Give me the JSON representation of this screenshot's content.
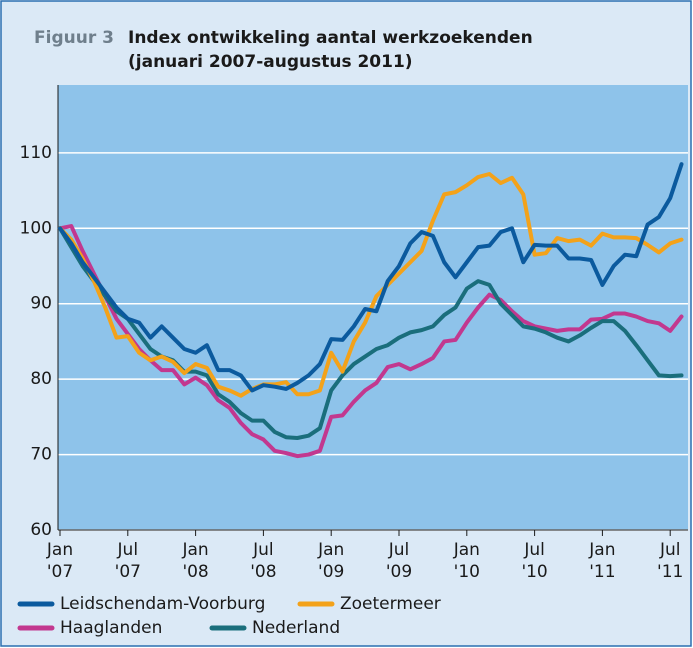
{
  "chart_data": {
    "type": "line",
    "label": "Figuur 3",
    "title": [
      "Index ontwikkeling aantal werkzoekenden",
      "(januari 2007-augustus 2011)"
    ],
    "categories": [
      "Jan '07",
      null,
      null,
      null,
      null,
      null,
      "Jul '07",
      null,
      null,
      null,
      null,
      null,
      "Jan '08",
      null,
      null,
      null,
      null,
      null,
      "Jul '08",
      null,
      null,
      null,
      null,
      null,
      "Jan '09",
      null,
      null,
      null,
      null,
      null,
      "Jul '09",
      null,
      null,
      null,
      null,
      null,
      "Jan '10",
      null,
      null,
      null,
      null,
      null,
      "Jul '10",
      null,
      null,
      null,
      null,
      null,
      "Jan '11",
      null,
      null,
      null,
      null,
      null,
      "Jul '11",
      null
    ],
    "ylim": [
      60,
      119
    ],
    "yticks": [
      60,
      70,
      80,
      90,
      100,
      110
    ],
    "grid": true,
    "series": [
      {
        "name": "Leidschendam-Voorburg",
        "color": "#0b5a9e",
        "values": [
          100,
          98,
          95.5,
          93.5,
          91.5,
          89.5,
          88,
          87.5,
          85.5,
          87,
          85.5,
          84,
          83.5,
          84.5,
          81.2,
          81.2,
          80.5,
          78.5,
          79.2,
          79,
          78.7,
          79.5,
          80.5,
          82,
          85.3,
          85.2,
          87,
          89.3,
          89,
          93,
          95,
          98,
          99.5,
          99,
          95.5,
          93.5,
          95.5,
          97.5,
          97.7,
          99.5,
          100,
          95.5,
          97.8,
          97.7,
          97.7,
          96,
          96,
          95.8,
          92.5,
          95,
          96.5,
          96.3,
          100.5,
          101.5,
          104,
          108.5
        ]
      },
      {
        "name": "Zoetermeer",
        "color": "#f3a21a",
        "values": [
          100,
          98.5,
          96,
          93,
          89.5,
          85.5,
          85.7,
          83.5,
          82.5,
          83,
          82.3,
          80.8,
          82,
          81.5,
          79,
          78.5,
          77.8,
          78.7,
          79.3,
          79.3,
          79.6,
          78,
          78,
          78.5,
          83.5,
          81,
          85,
          87.5,
          91,
          92.5,
          94,
          95.5,
          97,
          101,
          104.5,
          104.8,
          105.7,
          106.8,
          107.2,
          106,
          106.7,
          104.5,
          96.5,
          96.7,
          98.7,
          98.3,
          98.5,
          97.7,
          99.3,
          98.8,
          98.8,
          98.7,
          97.8,
          96.8,
          98,
          98.5
        ]
      },
      {
        "name": "Haaglanden",
        "color": "#c2388f",
        "values": [
          100,
          100.3,
          97,
          94,
          91,
          88,
          86,
          84,
          82.5,
          81.2,
          81.2,
          79.3,
          80.2,
          79.2,
          77.2,
          76.2,
          74.2,
          72.7,
          72,
          70.5,
          70.2,
          69.8,
          70,
          70.5,
          75,
          75.2,
          77,
          78.5,
          79.5,
          81.6,
          82,
          81.3,
          82,
          82.8,
          85,
          85.2,
          87.5,
          89.5,
          91.2,
          90.5,
          89,
          87.7,
          87,
          86.7,
          86.4,
          86.6,
          86.6,
          87.9,
          88,
          88.7,
          88.7,
          88.3,
          87.7,
          87.4,
          86.4,
          88.3
        ]
      },
      {
        "name": "Nederland",
        "color": "#1a6e7c",
        "values": [
          100,
          97.5,
          95,
          93,
          91,
          89,
          88,
          86,
          84,
          83,
          82.5,
          81,
          81,
          80.5,
          78,
          77,
          75.5,
          74.5,
          74.5,
          73,
          72.3,
          72.2,
          72.5,
          73.5,
          78.5,
          80.5,
          82,
          83,
          84,
          84.5,
          85.5,
          86.2,
          86.5,
          87,
          88.5,
          89.5,
          92,
          93,
          92.5,
          90,
          88.5,
          87,
          86.7,
          86.2,
          85.5,
          85,
          85.8,
          86.8,
          87.7,
          87.7,
          86.4,
          84.5,
          82.5,
          80.5,
          80.4,
          80.5
        ]
      }
    ]
  }
}
